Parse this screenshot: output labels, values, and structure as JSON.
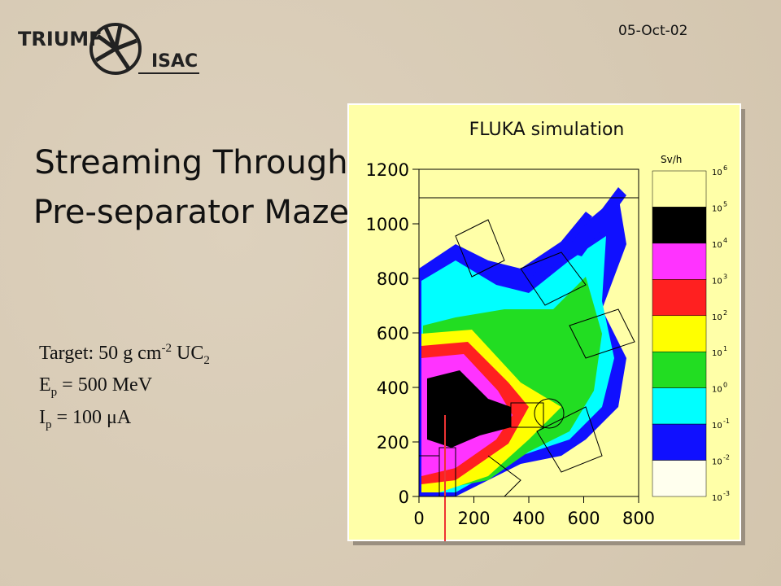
{
  "header": {
    "date": "05-Oct-02",
    "logo": [
      "TRIUMF",
      "ISAC"
    ]
  },
  "title": "Streaming Through Pre-separator Maze",
  "parameters": [
    [
      {
        "text": "Target: 50 g cm"
      },
      {
        "sup": "-2"
      },
      {
        "text": " UC"
      },
      {
        "sub": "2"
      }
    ],
    [
      {
        "text": "E"
      },
      {
        "sub": "p"
      },
      {
        "text": " = 500 MeV"
      }
    ],
    [
      {
        "text": "I"
      },
      {
        "sub": "p"
      },
      {
        "text": "  = 100 μA"
      }
    ]
  ],
  "figure": {
    "title": "FLUKA simulation",
    "xlim": [
      0,
      800
    ],
    "xticks": [
      0,
      200,
      400,
      600,
      800
    ],
    "ylim": [
      0,
      1200
    ],
    "yticks": [
      0,
      200,
      400,
      600,
      800,
      1000,
      1200
    ],
    "colorbar": {
      "unit": "Sv/h",
      "base": "10",
      "exponents": [
        "6",
        "5",
        "4",
        "3",
        "2",
        "1",
        "0",
        "-1",
        "-2",
        "-3"
      ],
      "colors": [
        "#ffffa8",
        "#000000",
        "#ff33ff",
        "#ff2020",
        "#ffff00",
        "#22dd22",
        "#00ffff",
        "#1010ff",
        "#ffffee"
      ]
    }
  }
}
